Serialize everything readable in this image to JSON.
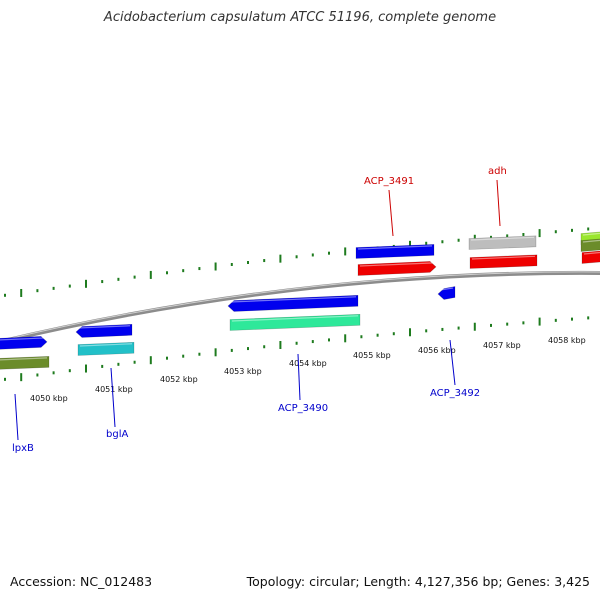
{
  "title": "Acidobacterium capsulatum ATCC 51196, complete genome",
  "footer": {
    "accession": "Accession: NC_012483",
    "topology": "Topology: circular; Length: 4,127,356 bp; Genes: 3,425"
  },
  "colors": {
    "backbone": "#8c8c8c",
    "tick": "#1e7b1e",
    "label_forward": "#cc0000",
    "label_reverse": "#0000cc",
    "feature_blue": "#0000ee",
    "feature_red": "#ee0000",
    "feature_cyan": "#22c0c8",
    "feature_green": "#2ee89a",
    "feature_gray": "#bdbdbd",
    "feature_olive": "#6b8c2a",
    "feature_lime": "#9ae62e"
  },
  "ticks": [
    {
      "label": "4050 kbp"
    },
    {
      "label": "4051 kbp"
    },
    {
      "label": "4052 kbp"
    },
    {
      "label": "4053 kbp"
    },
    {
      "label": "4054 kbp"
    },
    {
      "label": "4055 kbp"
    },
    {
      "label": "4056 kbp"
    },
    {
      "label": "4057 kbp"
    },
    {
      "label": "4058 kbp"
    }
  ],
  "gene_labels": [
    {
      "name": "lpxB",
      "strand": "reverse"
    },
    {
      "name": "bglA",
      "strand": "reverse"
    },
    {
      "name": "ACP_3490",
      "strand": "reverse"
    },
    {
      "name": "ACP_3491",
      "strand": "forward"
    },
    {
      "name": "adh",
      "strand": "forward"
    },
    {
      "name": "ACP_3492",
      "strand": "reverse"
    }
  ]
}
